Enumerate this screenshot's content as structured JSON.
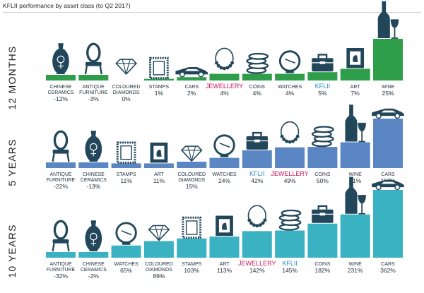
{
  "header": {
    "title": "KFLII performance by asset class (to Q2 2017)"
  },
  "colors": {
    "panel_12_months": "#2e9e4b",
    "panel_5_years": "#5b86c4",
    "panel_10_years": "#3bb2c2",
    "icon": "#22475a",
    "highlight_jewellery": "#c2185b",
    "highlight_kflii": "#2a8fc8",
    "text": "#1f2f3a"
  },
  "chart_data": [
    {
      "type": "bar",
      "panel": "12 MONTHS",
      "color": "#2e9e4b",
      "ylim": [
        -12,
        25
      ],
      "categories": [
        "CHINESE CERAMICS",
        "ANTIQUE FURNITURE",
        "COLOURED DIAMONDS",
        "STAMPS",
        "CARS",
        "JEWELLERY",
        "COINS",
        "WATCHES",
        "KFLII",
        "ART",
        "WINE"
      ],
      "values": [
        -12,
        -3,
        0,
        1,
        2,
        4,
        4,
        4,
        5,
        7,
        25
      ],
      "value_labels": [
        "-12%",
        "-3%",
        "0%",
        "1%",
        "2%",
        "4%",
        "4%",
        "4%",
        "5%",
        "7%",
        "25%"
      ],
      "icons": [
        "vase-icon",
        "chair-icon",
        "diamond-icon",
        "stamp-icon",
        "car-icon",
        "necklace-icon",
        "coins-icon",
        "watch-icon",
        "briefcase-icon",
        "painting-icon",
        "wine-icon"
      ],
      "highlights": [
        "",
        "",
        "",
        "",
        "",
        "jewellery",
        "",
        "",
        "kflii",
        "",
        ""
      ]
    },
    {
      "type": "bar",
      "panel": "5 YEARS",
      "color": "#5b86c4",
      "ylim": [
        -22,
        117
      ],
      "categories": [
        "ANTIQUE FURNITURE",
        "CHINESE CERAMICS",
        "STAMPS",
        "ART",
        "COLOURED DIAMONDS",
        "WATCHES",
        "KFLII",
        "JEWELLERY",
        "COINS",
        "WINE",
        "CARS"
      ],
      "values": [
        -22,
        -13,
        11,
        11,
        15,
        24,
        42,
        49,
        50,
        61,
        117
      ],
      "value_labels": [
        "-22%",
        "-13%",
        "11%",
        "11%",
        "15%",
        "24%",
        "42%",
        "49%",
        "50%",
        "61%",
        "117%"
      ],
      "icons": [
        "chair-icon",
        "vase-icon",
        "stamp-icon",
        "painting-icon",
        "diamond-icon",
        "watch-icon",
        "briefcase-icon",
        "necklace-icon",
        "coins-icon",
        "wine-icon",
        "car-icon"
      ],
      "highlights": [
        "",
        "",
        "",
        "",
        "",
        "",
        "kflii",
        "jewellery",
        "",
        "",
        ""
      ]
    },
    {
      "type": "bar",
      "panel": "10 YEARS",
      "color": "#3bb2c2",
      "ylim": [
        -32,
        362
      ],
      "categories": [
        "ANTIQUE FURNITURE",
        "CHINESE CERAMICS",
        "WATCHES",
        "COLOURED DIAMONDS",
        "STAMPS",
        "ART",
        "JEWELLERY",
        "KFLII",
        "COINS",
        "WINE",
        "CARS"
      ],
      "values": [
        -32,
        -2,
        65,
        89,
        103,
        113,
        142,
        145,
        182,
        231,
        362
      ],
      "value_labels": [
        "-32%",
        "-2%",
        "65%",
        "89%",
        "103%",
        "113%",
        "142%",
        "145%",
        "182%",
        "231%",
        "362%"
      ],
      "icons": [
        "chair-icon",
        "vase-icon",
        "watch-icon",
        "diamond-icon",
        "stamp-icon",
        "painting-icon",
        "necklace-icon",
        "coins-icon",
        "briefcase-icon",
        "wine-icon",
        "car-icon"
      ],
      "highlights": [
        "",
        "",
        "",
        "",
        "",
        "",
        "jewellery",
        "kflii",
        "",
        "",
        ""
      ]
    }
  ]
}
